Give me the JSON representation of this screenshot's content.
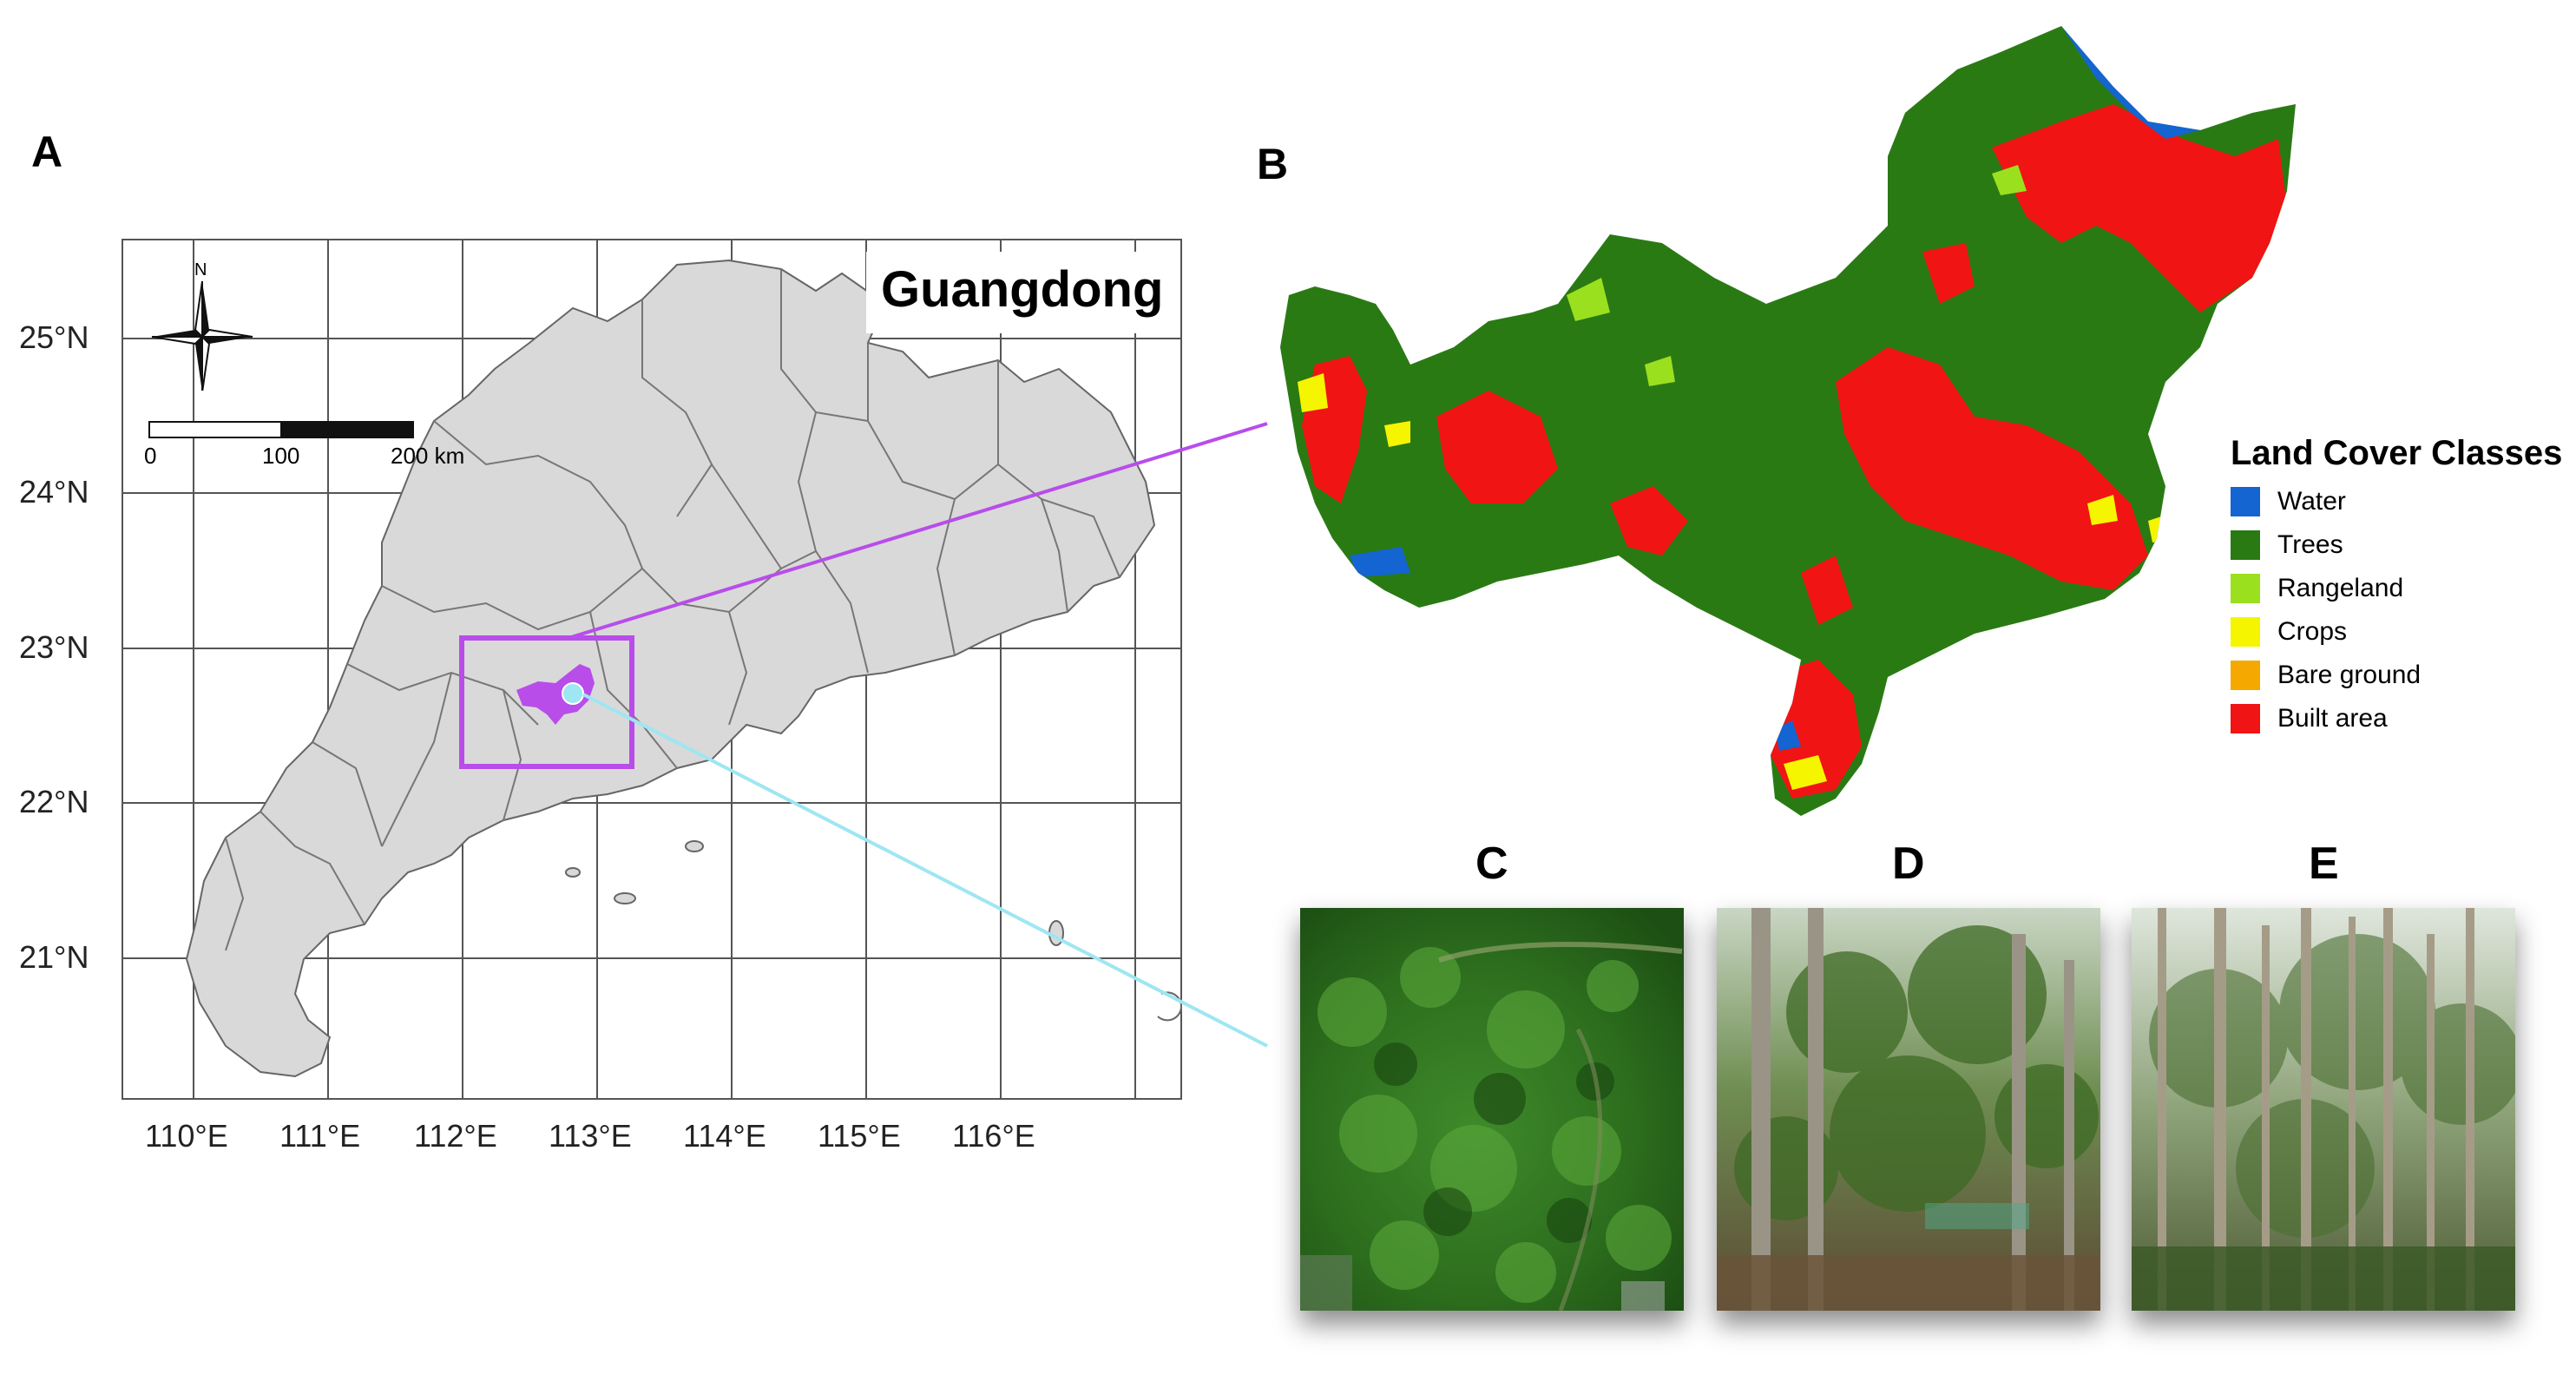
{
  "panels": {
    "a": "A",
    "b": "B",
    "c": "C",
    "d": "D",
    "e": "E"
  },
  "panel_a": {
    "region_name": "Guangdong",
    "north_label": "N",
    "scale_bar": {
      "labels": [
        "0",
        "100",
        "200 km"
      ]
    },
    "lat_ticks": [
      "25°N",
      "24°N",
      "23°N",
      "22°N",
      "21°N"
    ],
    "lon_ticks": [
      "110°E",
      "111°E",
      "112°E",
      "113°E",
      "114°E",
      "115°E",
      "116°E"
    ],
    "colors": {
      "province_fill": "#d9d9d9",
      "study_box": "#b84dea",
      "study_area": "#b84dea",
      "site_point": "#9ee6f2"
    }
  },
  "panel_b": {
    "legend_title": "Land Cover Classes",
    "legend": [
      {
        "label": "Water",
        "color": "#1464d2"
      },
      {
        "label": "Trees",
        "color": "#2a7a14"
      },
      {
        "label": "Rangeland",
        "color": "#9be01e"
      },
      {
        "label": "Crops",
        "color": "#f5f500"
      },
      {
        "label": "Bare ground",
        "color": "#f5a800"
      },
      {
        "label": "Built area",
        "color": "#f01414"
      }
    ]
  }
}
